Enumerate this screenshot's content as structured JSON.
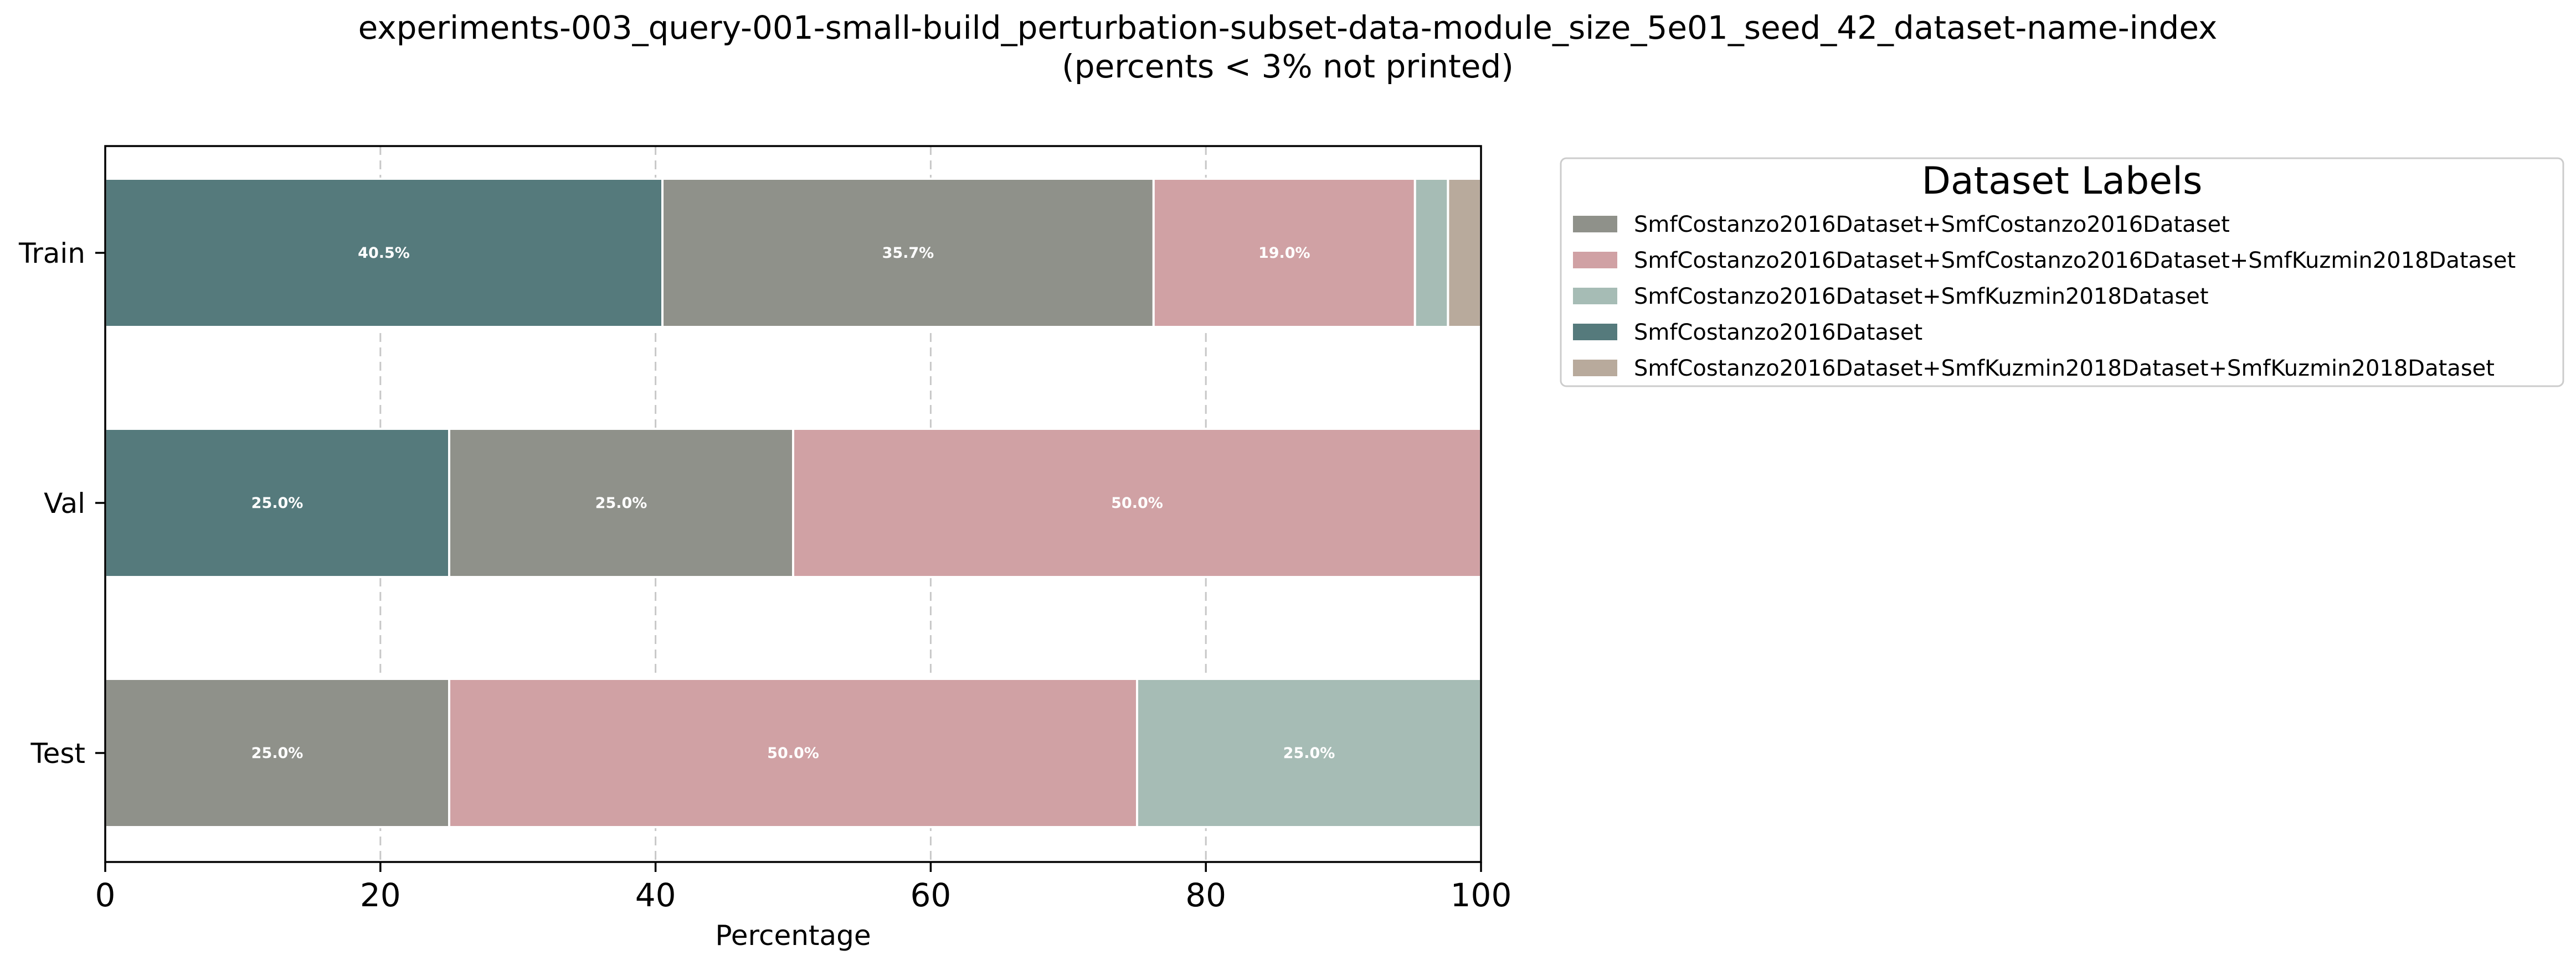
{
  "chart_data": {
    "type": "bar",
    "orientation": "horizontal",
    "stacked": true,
    "title": "experiments-003_query-001-small-build_perturbation-subset-data-module_size_5e01_seed_42_dataset-name-index",
    "subtitle": "(percents < 3% not printed)",
    "xlabel": "Percentage",
    "ylabel": "",
    "xlim": [
      0,
      100
    ],
    "x_ticks": [
      "0",
      "20",
      "40",
      "60",
      "80",
      "100"
    ],
    "x_tick_values": [
      0,
      20,
      40,
      60,
      80,
      100
    ],
    "grid": "vertical dashed",
    "categories": [
      "Train",
      "Val",
      "Test"
    ],
    "label_threshold": 3,
    "legend": {
      "title": "Dataset Labels",
      "placement": "outside-right-top"
    },
    "series": [
      {
        "name": "SmfCostanzo2016Dataset",
        "color": "#557a7c",
        "values": [
          40.5,
          25.0,
          0
        ]
      },
      {
        "name": "SmfCostanzo2016Dataset+SmfCostanzo2016Dataset",
        "color": "#8f918a",
        "values": [
          35.7,
          25.0,
          25.0
        ]
      },
      {
        "name": "SmfCostanzo2016Dataset+SmfCostanzo2016Dataset+SmfKuzmin2018Dataset",
        "color": "#d0a1a4",
        "values": [
          19.0,
          50.0,
          50.0
        ]
      },
      {
        "name": "SmfCostanzo2016Dataset+SmfKuzmin2018Dataset",
        "color": "#a6bcb5",
        "values": [
          2.4,
          0,
          25.0
        ]
      },
      {
        "name": "SmfCostanzo2016Dataset+SmfKuzmin2018Dataset+SmfKuzmin2018Dataset",
        "color": "#b8aa9c",
        "values": [
          2.4,
          0,
          0
        ]
      }
    ],
    "legend_order": [
      "SmfCostanzo2016Dataset+SmfCostanzo2016Dataset",
      "SmfCostanzo2016Dataset+SmfCostanzo2016Dataset+SmfKuzmin2018Dataset",
      "SmfCostanzo2016Dataset+SmfKuzmin2018Dataset",
      "SmfCostanzo2016Dataset",
      "SmfCostanzo2016Dataset+SmfKuzmin2018Dataset+SmfKuzmin2018Dataset"
    ]
  }
}
